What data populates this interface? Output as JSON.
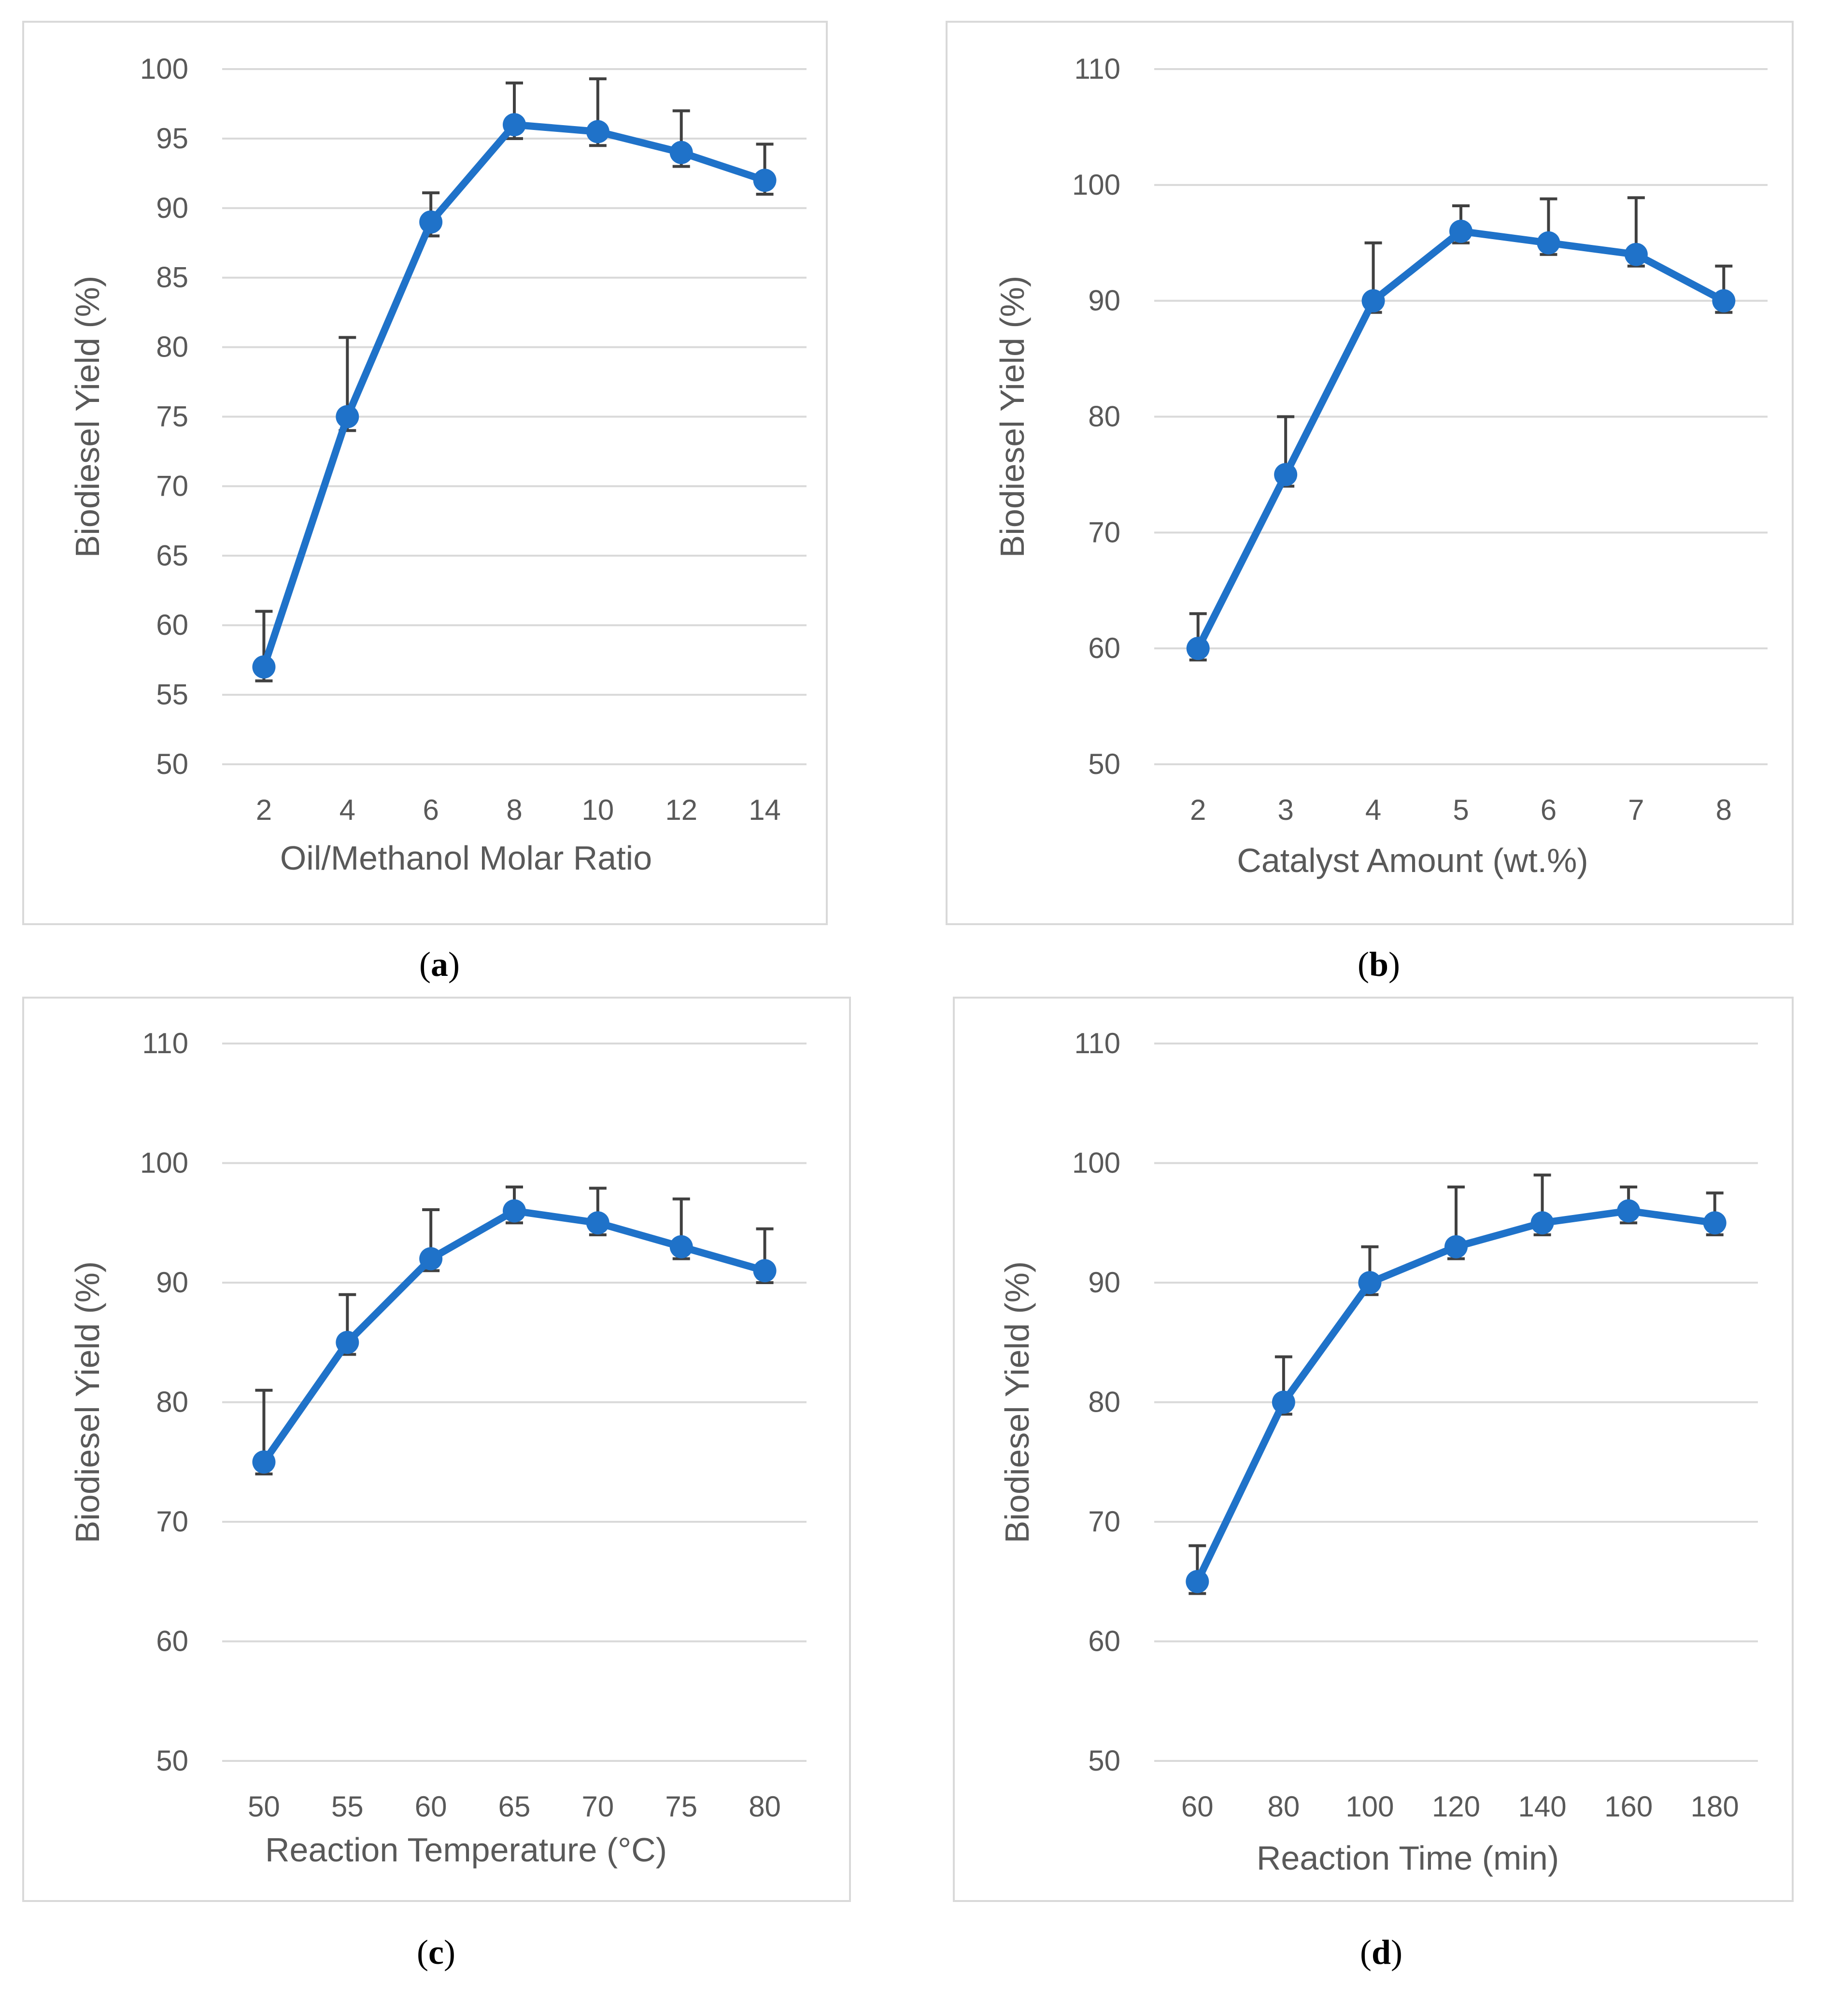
{
  "colors": {
    "series": "#1f72c9",
    "error": "#404040"
  },
  "chart_data": [
    {
      "type": "line",
      "panel": "a",
      "xlabel": "Oil/Methanol Molar Ratio",
      "ylabel": "Biodiesel Yield (%)",
      "ylim": [
        50,
        100
      ],
      "yticks": [
        50,
        55,
        60,
        65,
        70,
        75,
        80,
        85,
        90,
        95,
        100
      ],
      "categories": [
        "2",
        "4",
        "6",
        "8",
        "10",
        "12",
        "14"
      ],
      "series": [
        {
          "name": "Biodiesel Yield",
          "values": [
            57,
            75,
            89,
            96,
            95.5,
            94,
            92
          ]
        }
      ],
      "error_plus": [
        61,
        80.7,
        91.1,
        99,
        99.3,
        97,
        94.6
      ],
      "error_minus": [
        56,
        74,
        88,
        95,
        94.5,
        93,
        91
      ]
    },
    {
      "type": "line",
      "panel": "b",
      "xlabel": "Catalyst Amount (wt.%)",
      "ylabel": "Biodiesel Yield (%)",
      "ylim": [
        50,
        110
      ],
      "yticks": [
        50,
        60,
        70,
        80,
        90,
        100,
        110
      ],
      "categories": [
        "2",
        "3",
        "4",
        "5",
        "6",
        "7",
        "8"
      ],
      "series": [
        {
          "name": "Biodiesel Yield",
          "values": [
            60,
            75,
            90,
            96,
            95,
            94,
            90
          ]
        }
      ],
      "error_plus": [
        63,
        80,
        95,
        98.2,
        98.8,
        98.9,
        93
      ],
      "error_minus": [
        59,
        74,
        89,
        95,
        94,
        93,
        89
      ]
    },
    {
      "type": "line",
      "panel": "c",
      "xlabel": "Reaction Temperature (°C)",
      "ylabel": "Biodiesel Yield (%)",
      "ylim": [
        50,
        110
      ],
      "yticks": [
        50,
        60,
        70,
        80,
        90,
        100,
        110
      ],
      "categories": [
        "50",
        "55",
        "60",
        "65",
        "70",
        "75",
        "80"
      ],
      "series": [
        {
          "name": "Biodiesel Yield",
          "values": [
            75,
            85,
            92,
            96,
            95,
            93,
            91
          ]
        }
      ],
      "error_plus": [
        81,
        89,
        96.1,
        98,
        97.9,
        97,
        94.5
      ],
      "error_minus": [
        74,
        84,
        91,
        95,
        94,
        92,
        90
      ]
    },
    {
      "type": "line",
      "panel": "d",
      "xlabel": "Reaction Time (min)",
      "ylabel": "Biodiesel Yield (%)",
      "ylim": [
        50,
        110
      ],
      "yticks": [
        50,
        60,
        70,
        80,
        90,
        100,
        110
      ],
      "categories": [
        "60",
        "80",
        "100",
        "120",
        "140",
        "160",
        "180"
      ],
      "series": [
        {
          "name": "Biodiesel Yield",
          "values": [
            65,
            80,
            90,
            93,
            95,
            96,
            95
          ]
        }
      ],
      "error_plus": [
        68,
        83.8,
        93,
        98,
        99,
        98,
        97.5
      ],
      "error_minus": [
        64,
        79,
        89,
        92,
        94,
        95,
        94
      ]
    }
  ]
}
